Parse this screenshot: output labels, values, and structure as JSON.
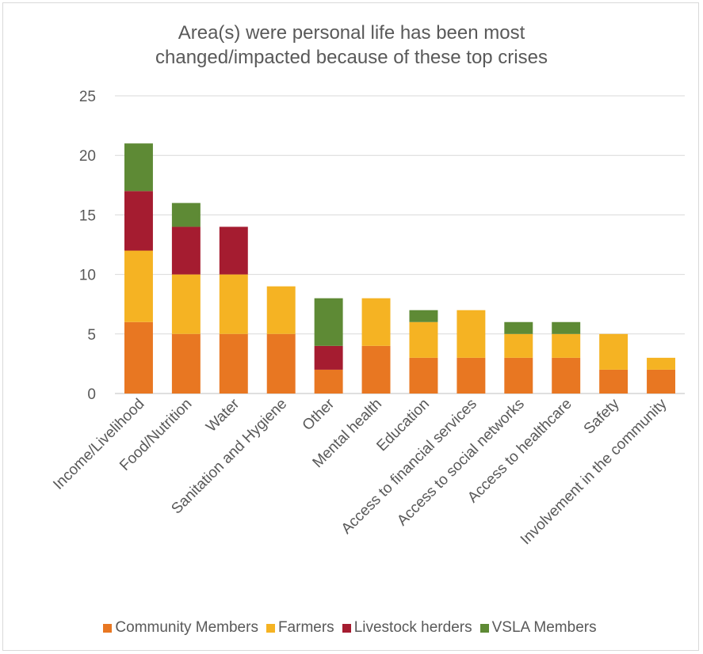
{
  "chart_data": {
    "type": "bar",
    "stacked": true,
    "title": "Area(s) were personal life has been most\nchanged/impacted because of these top crises",
    "categories": [
      "Income/Livelihood",
      "Food/Nutrition",
      "Water",
      "Sanitation and Hygiene",
      "Other",
      "Mental health",
      "Education",
      "Access to financial services",
      "Access to social networks",
      "Access to healthcare",
      "Safety",
      "Involvement in the community"
    ],
    "series": [
      {
        "name": "Community Members",
        "color": "#e87722",
        "values": [
          6,
          5,
          5,
          5,
          2,
          4,
          3,
          3,
          3,
          3,
          2,
          2
        ]
      },
      {
        "name": "Farmers",
        "color": "#f5b323",
        "values": [
          6,
          5,
          5,
          4,
          0,
          4,
          3,
          4,
          2,
          2,
          3,
          1
        ]
      },
      {
        "name": "Livestock herders",
        "color": "#a51c30",
        "values": [
          5,
          4,
          4,
          0,
          2,
          0,
          0,
          0,
          0,
          0,
          0,
          0
        ]
      },
      {
        "name": "VSLA Members",
        "color": "#5e8a35",
        "values": [
          4,
          2,
          0,
          0,
          4,
          0,
          1,
          0,
          1,
          1,
          0,
          0
        ]
      }
    ],
    "ylim": [
      0,
      25
    ],
    "yticks": [
      "0",
      "5",
      "10",
      "15",
      "20",
      "25"
    ],
    "grid": true,
    "legend_position": "bottom"
  }
}
